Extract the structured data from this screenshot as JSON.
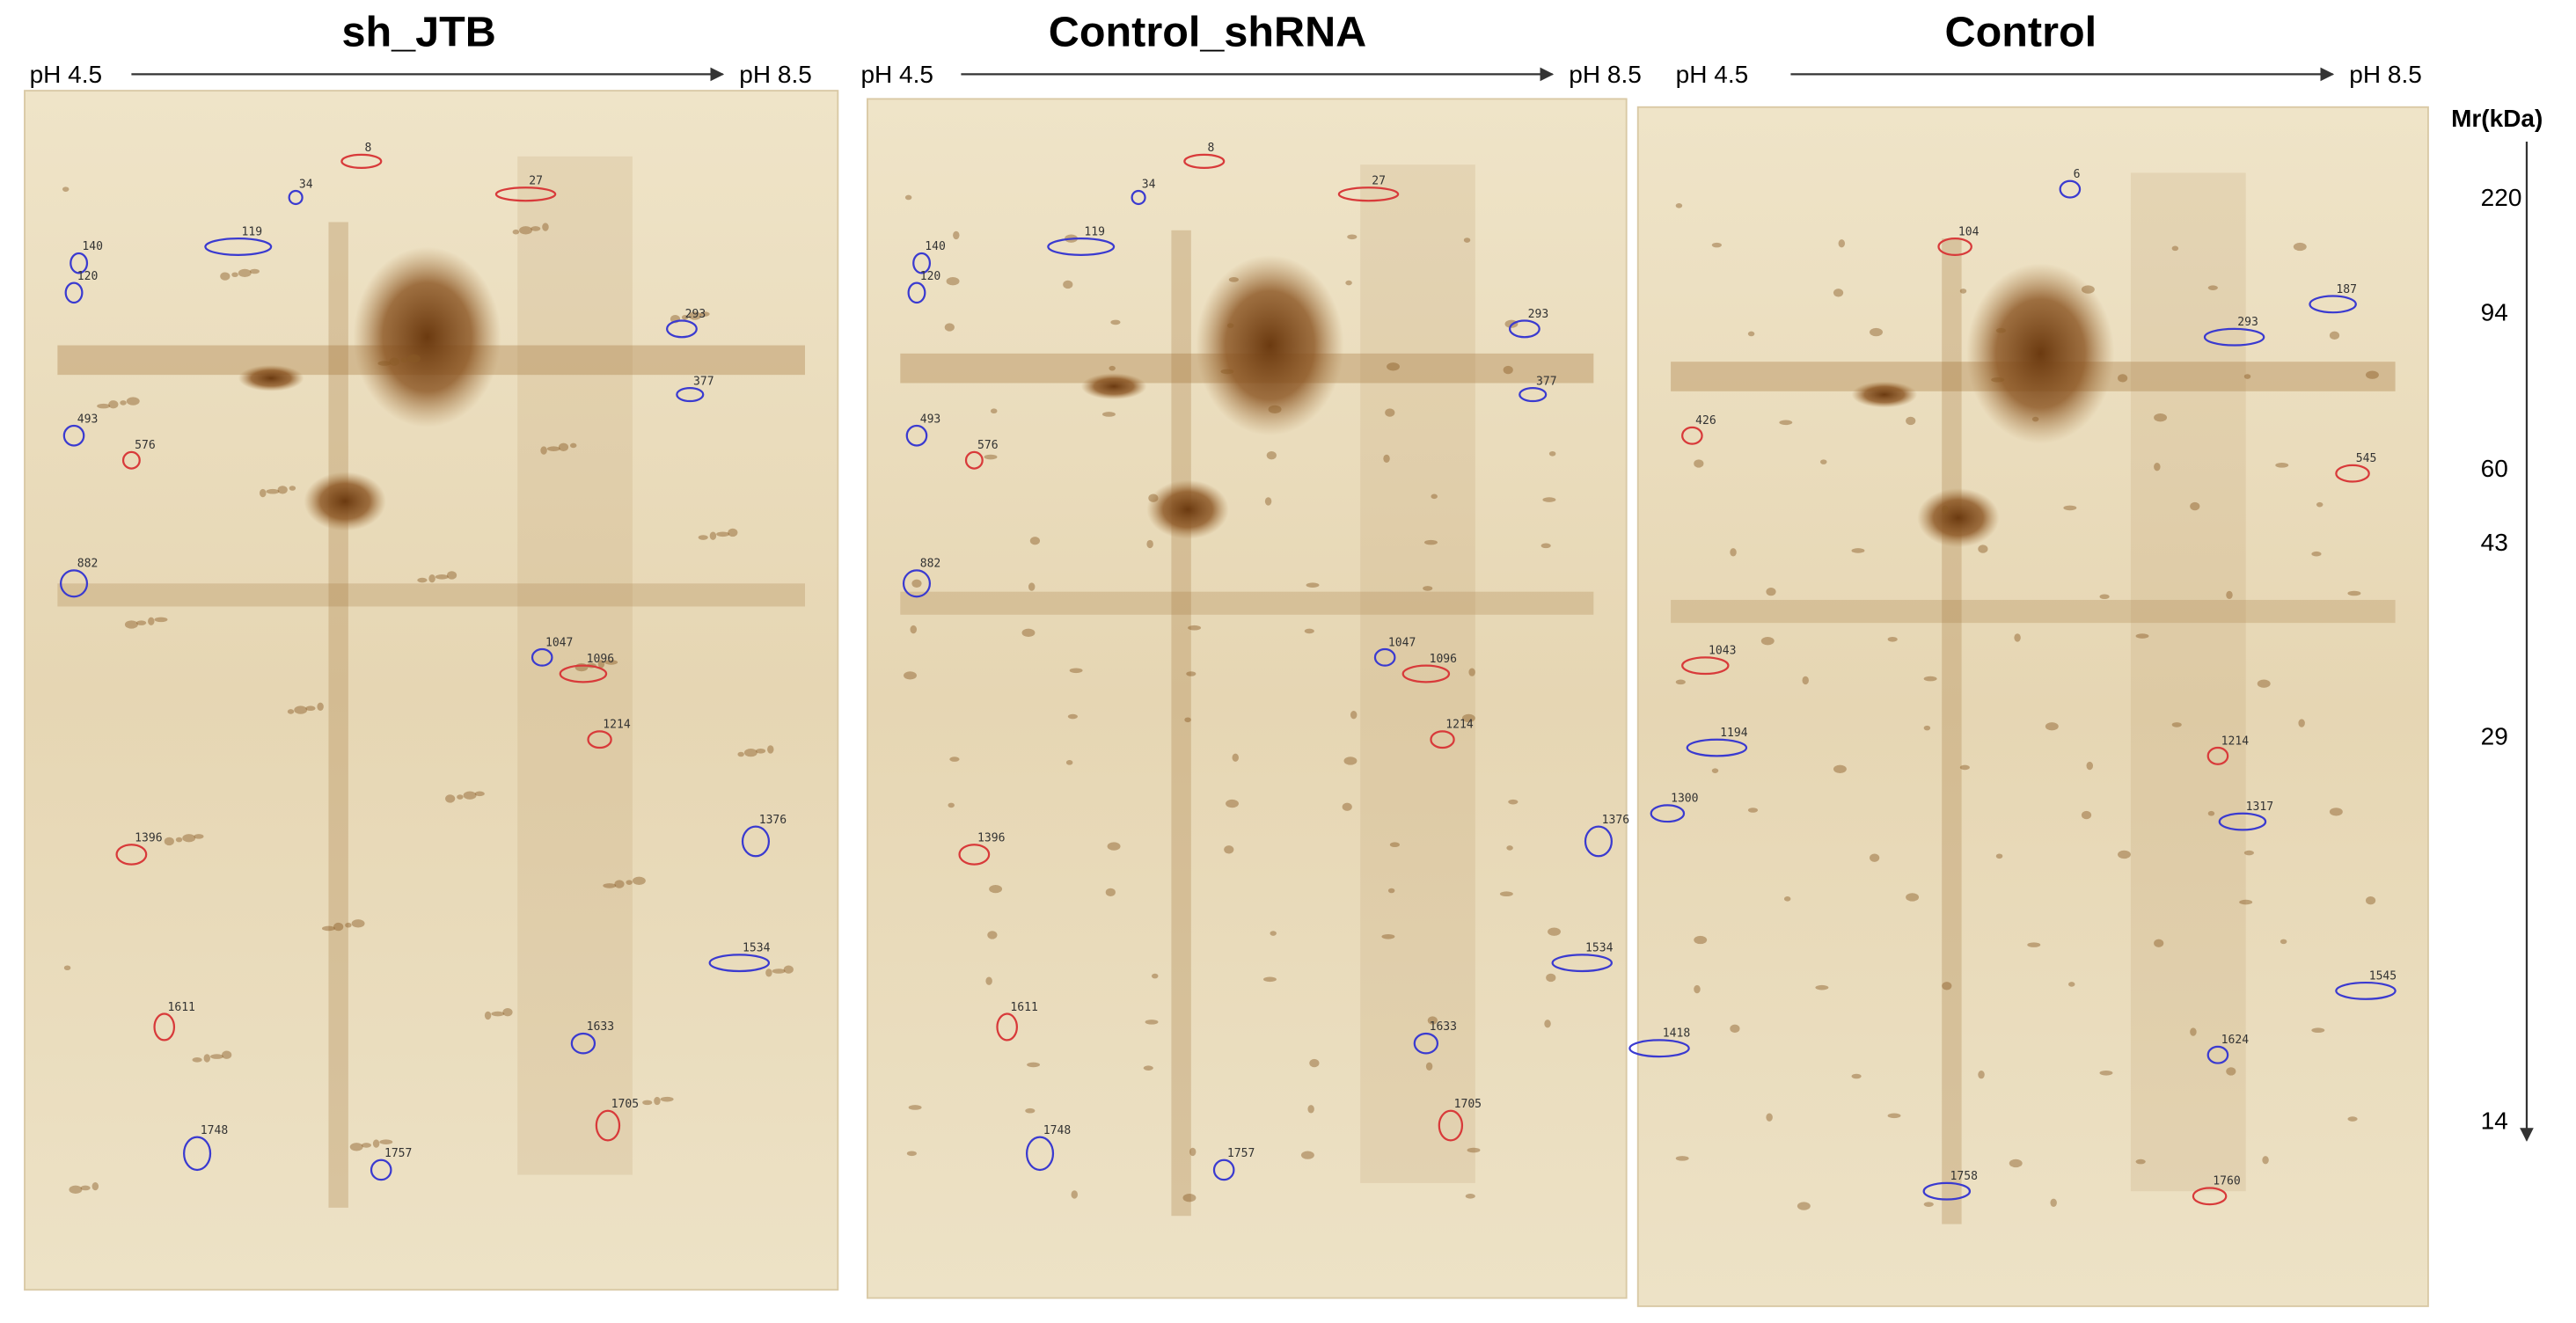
{
  "panels": [
    {
      "title": "sh_JTB",
      "ph_left": "pH 4.5",
      "ph_right": "pH 8.5",
      "spots": [
        {
          "label": "8",
          "color": "red"
        },
        {
          "label": "27",
          "color": "red"
        },
        {
          "label": "34",
          "color": "blue"
        },
        {
          "label": "119",
          "color": "blue"
        },
        {
          "label": "140",
          "color": "blue"
        },
        {
          "label": "120",
          "color": "blue"
        },
        {
          "label": "293",
          "color": "blue"
        },
        {
          "label": "377",
          "color": "blue"
        },
        {
          "label": "493",
          "color": "blue"
        },
        {
          "label": "576",
          "color": "red"
        },
        {
          "label": "882",
          "color": "blue"
        },
        {
          "label": "1047",
          "color": "blue"
        },
        {
          "label": "1096",
          "color": "red"
        },
        {
          "label": "1214",
          "color": "red"
        },
        {
          "label": "1376",
          "color": "blue"
        },
        {
          "label": "1396",
          "color": "red"
        },
        {
          "label": "1534",
          "color": "blue"
        },
        {
          "label": "1611",
          "color": "red"
        },
        {
          "label": "1633",
          "color": "blue"
        },
        {
          "label": "1705",
          "color": "red"
        },
        {
          "label": "1748",
          "color": "blue"
        },
        {
          "label": "1757",
          "color": "blue"
        }
      ]
    },
    {
      "title": "Control_shRNA",
      "ph_left": "pH 4.5",
      "ph_right": "pH 8.5",
      "spots": [
        {
          "label": "8",
          "color": "red"
        },
        {
          "label": "27",
          "color": "red"
        },
        {
          "label": "34",
          "color": "blue"
        },
        {
          "label": "119",
          "color": "blue"
        },
        {
          "label": "140",
          "color": "blue"
        },
        {
          "label": "120",
          "color": "blue"
        },
        {
          "label": "293",
          "color": "blue"
        },
        {
          "label": "377",
          "color": "blue"
        },
        {
          "label": "493",
          "color": "blue"
        },
        {
          "label": "576",
          "color": "red"
        },
        {
          "label": "882",
          "color": "blue"
        },
        {
          "label": "1047",
          "color": "blue"
        },
        {
          "label": "1096",
          "color": "red"
        },
        {
          "label": "1214",
          "color": "red"
        },
        {
          "label": "1376",
          "color": "blue"
        },
        {
          "label": "1396",
          "color": "red"
        },
        {
          "label": "1534",
          "color": "blue"
        },
        {
          "label": "1611",
          "color": "red"
        },
        {
          "label": "1633",
          "color": "blue"
        },
        {
          "label": "1705",
          "color": "red"
        },
        {
          "label": "1748",
          "color": "blue"
        },
        {
          "label": "1757",
          "color": "blue"
        }
      ]
    },
    {
      "title": "Control",
      "ph_left": "pH 4.5",
      "ph_right": "pH 8.5",
      "spots": [
        {
          "label": "6",
          "color": "blue"
        },
        {
          "label": "104",
          "color": "red"
        },
        {
          "label": "187",
          "color": "blue"
        },
        {
          "label": "293",
          "color": "blue"
        },
        {
          "label": "426",
          "color": "red"
        },
        {
          "label": "545",
          "color": "red"
        },
        {
          "label": "1043",
          "color": "red"
        },
        {
          "label": "1194",
          "color": "blue"
        },
        {
          "label": "1214",
          "color": "red"
        },
        {
          "label": "1300",
          "color": "blue"
        },
        {
          "label": "1317",
          "color": "blue"
        },
        {
          "label": "1545",
          "color": "blue"
        },
        {
          "label": "1624",
          "color": "blue"
        },
        {
          "label": "1760",
          "color": "red"
        },
        {
          "label": "1758",
          "color": "blue"
        },
        {
          "label": "1418",
          "color": "blue"
        }
      ]
    }
  ],
  "mr": {
    "label": "Mr(kDa)",
    "ticks": [
      220,
      94,
      60,
      43,
      29,
      14
    ]
  }
}
